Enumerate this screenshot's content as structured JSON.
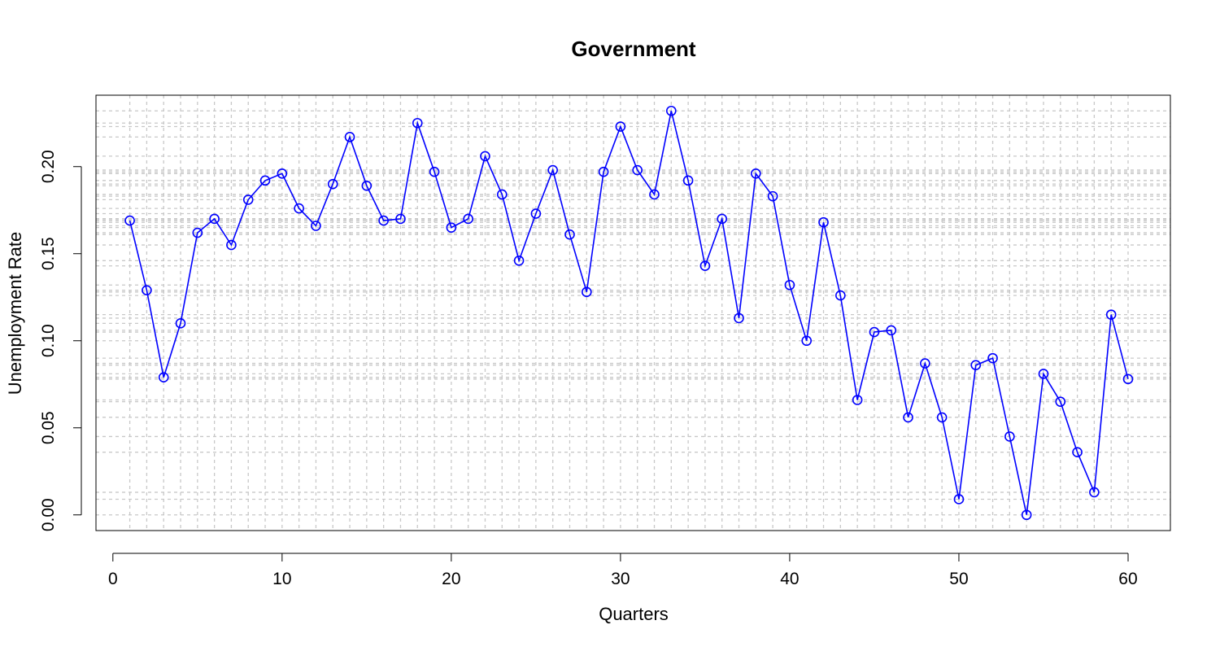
{
  "chart_data": {
    "type": "line",
    "title": "Government",
    "xlabel": "Quarters",
    "ylabel": "Unemployment Rate",
    "xlim": [
      -1,
      62.5
    ],
    "ylim": [
      -0.009,
      0.241
    ],
    "x_ticks": [
      0,
      10,
      20,
      30,
      40,
      50,
      60
    ],
    "x_tick_labels": [
      "0",
      "10",
      "20",
      "30",
      "40",
      "50",
      "60"
    ],
    "y_ticks": [
      0.0,
      0.05,
      0.1,
      0.15,
      0.2
    ],
    "y_tick_labels": [
      "0.00",
      "0.05",
      "0.10",
      "0.15",
      "0.20"
    ],
    "grid": true,
    "series_color": "#0000ff",
    "grid_color": "#c8c8c8",
    "x": [
      1,
      2,
      3,
      4,
      5,
      6,
      7,
      8,
      9,
      10,
      11,
      12,
      13,
      14,
      15,
      16,
      17,
      18,
      19,
      20,
      21,
      22,
      23,
      24,
      25,
      26,
      27,
      28,
      29,
      30,
      31,
      32,
      33,
      34,
      35,
      36,
      37,
      38,
      39,
      40,
      41,
      42,
      43,
      44,
      45,
      46,
      47,
      48,
      49,
      50,
      51,
      52,
      53,
      54,
      55,
      56,
      57,
      58,
      59,
      60
    ],
    "values": [
      0.169,
      0.129,
      0.079,
      0.11,
      0.162,
      0.17,
      0.155,
      0.181,
      0.192,
      0.196,
      0.176,
      0.166,
      0.19,
      0.217,
      0.189,
      0.169,
      0.17,
      0.225,
      0.197,
      0.165,
      0.17,
      0.206,
      0.184,
      0.146,
      0.173,
      0.198,
      0.161,
      0.128,
      0.197,
      0.223,
      0.198,
      0.184,
      0.232,
      0.192,
      0.143,
      0.17,
      0.113,
      0.196,
      0.183,
      0.132,
      0.1,
      0.168,
      0.126,
      0.066,
      0.105,
      0.106,
      0.056,
      0.087,
      0.056,
      0.009,
      0.086,
      0.09,
      0.045,
      0.0,
      0.081,
      0.065,
      0.036,
      0.013,
      0.115,
      0.078
    ]
  }
}
